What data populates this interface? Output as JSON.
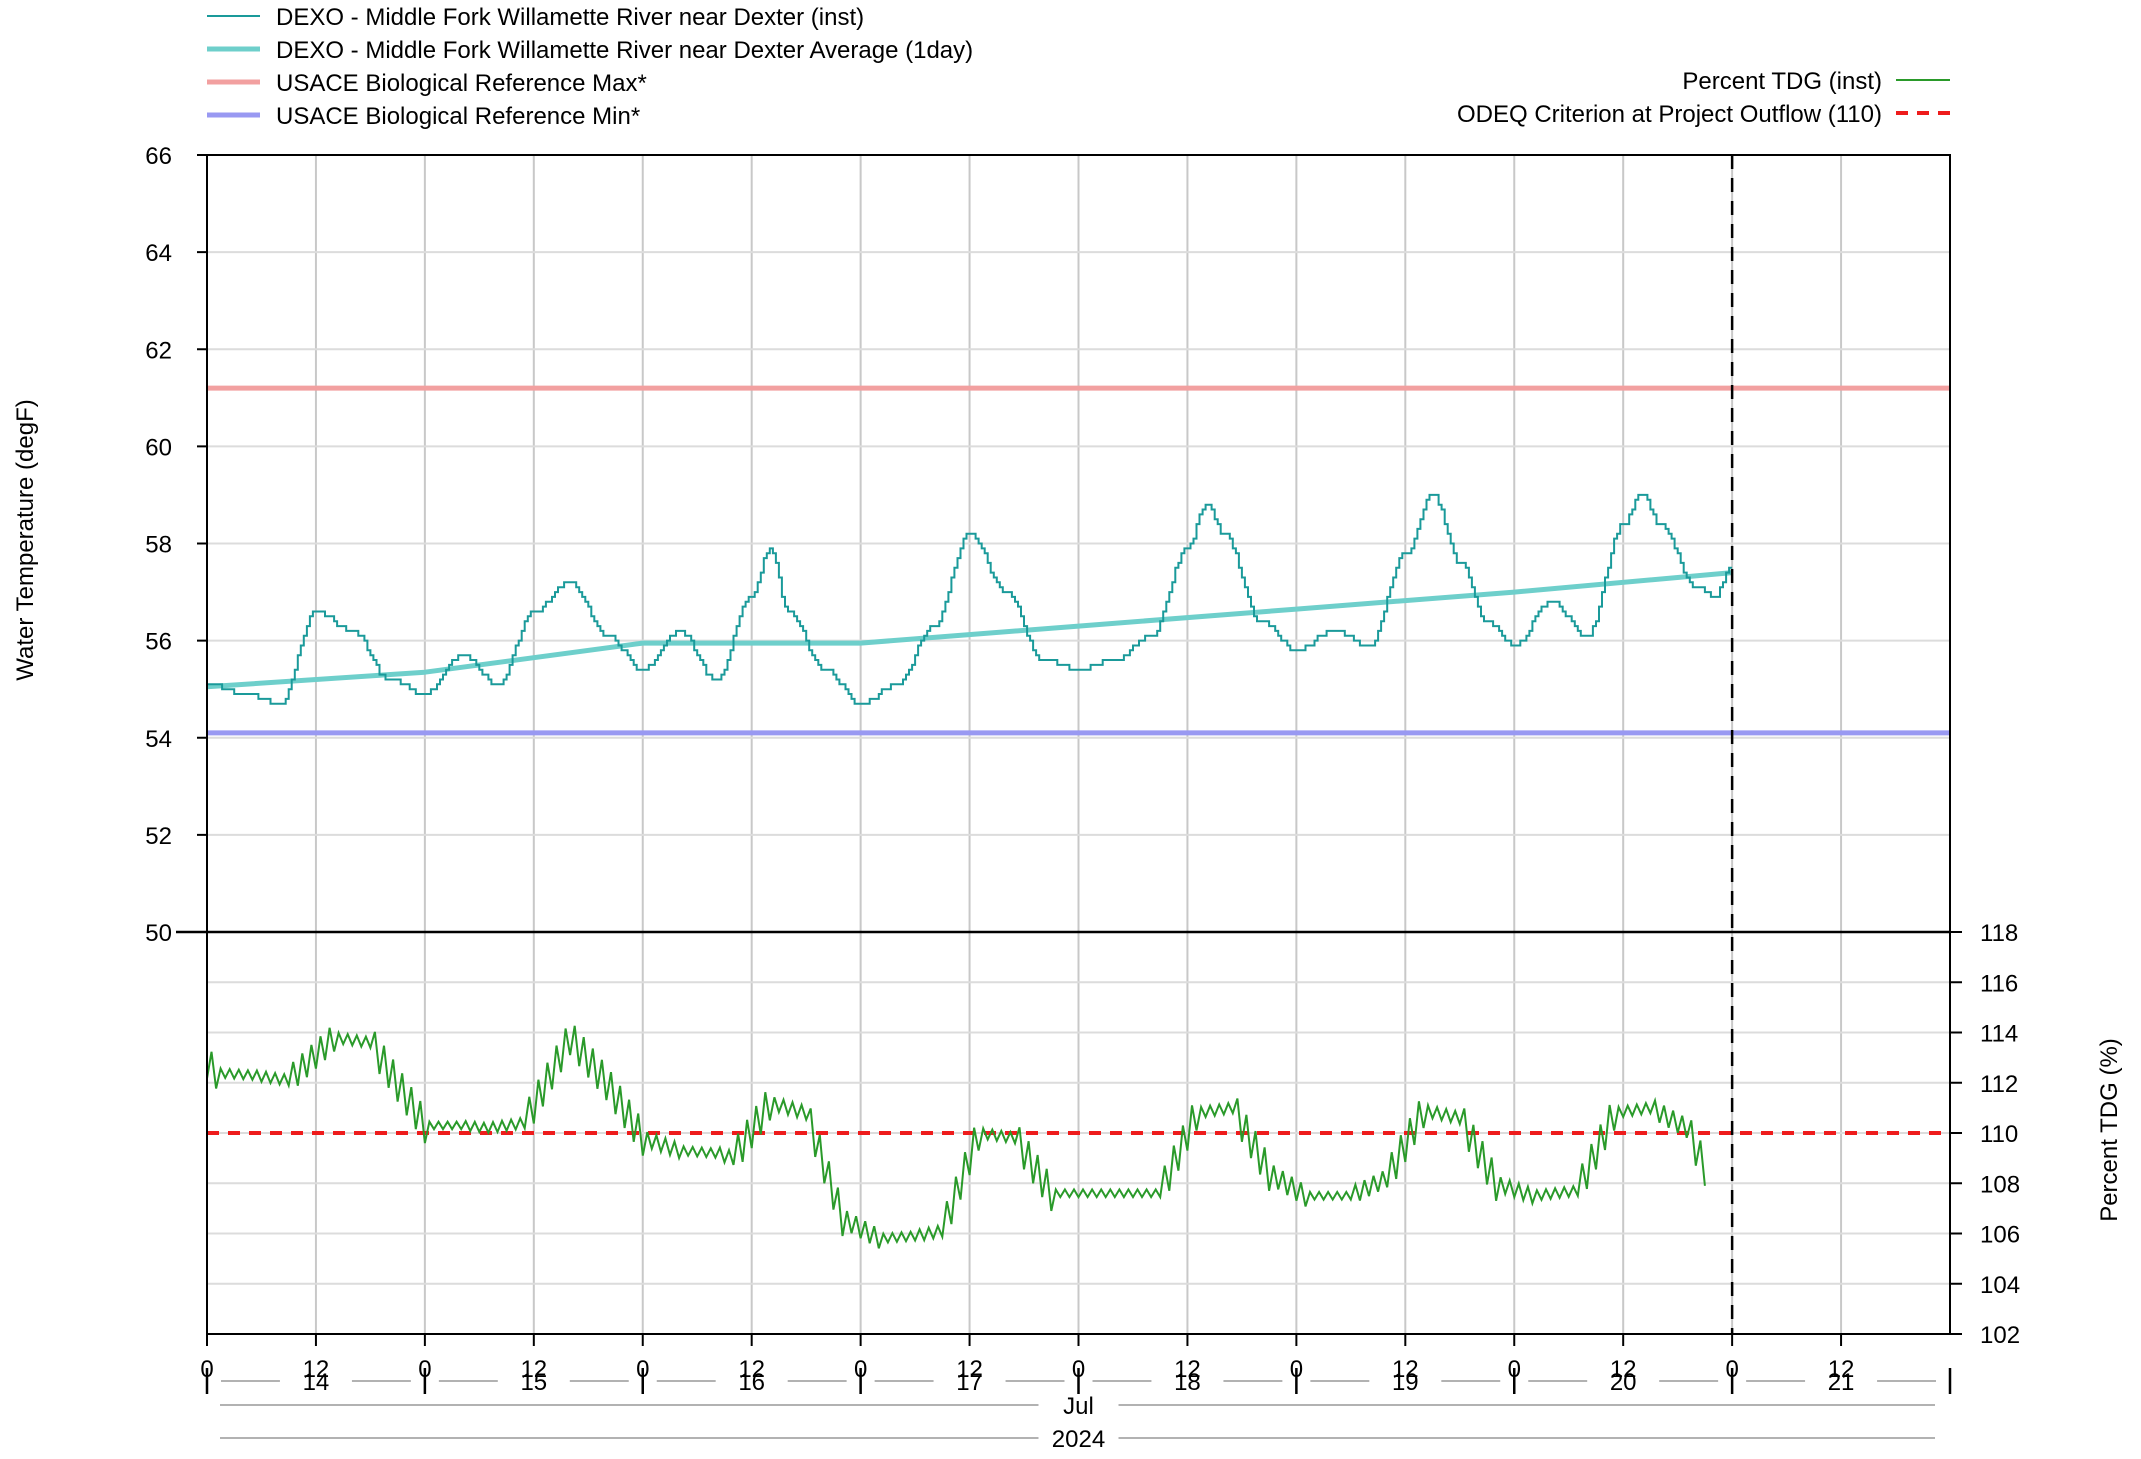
{
  "legend_left": [
    {
      "label": "DEXO - Middle Fork Willamette River near Dexter (inst)",
      "color": "#1a9a9a"
    },
    {
      "label": "DEXO - Middle Fork Willamette River near Dexter Average (1day)",
      "color": "#6ecfcb"
    },
    {
      "label": "USACE Biological Reference Max*",
      "color": "#f2a0a0"
    },
    {
      "label": "USACE Biological Reference Min*",
      "color": "#9999f2"
    }
  ],
  "legend_right": [
    {
      "label": "Percent TDG (inst)",
      "color": "#2a9a2a"
    },
    {
      "label": "ODEQ Criterion at Project Outflow (110)",
      "color": "#ee1c1c"
    }
  ],
  "chart_data": [
    {
      "type": "line",
      "panel": "top",
      "ylabel": "Water Temperature (degF)",
      "ylim": [
        50,
        66
      ],
      "yticks": [
        50,
        52,
        54,
        56,
        58,
        60,
        62,
        64,
        66
      ],
      "xlim": [
        "2024-07-14 00:00",
        "2024-07-22 00:00"
      ],
      "grid": true,
      "series": [
        {
          "name": "DEXO - Middle Fork Willamette River near Dexter (inst)",
          "color": "#1a9a9a",
          "x": [
            "2024-07-14 00:00",
            "2024-07-14 04:00",
            "2024-07-14 08:00",
            "2024-07-14 12:00",
            "2024-07-14 16:00",
            "2024-07-14 20:00",
            "2024-07-15 00:00",
            "2024-07-15 04:00",
            "2024-07-15 08:00",
            "2024-07-15 12:00",
            "2024-07-15 16:00",
            "2024-07-15 20:00",
            "2024-07-16 00:00",
            "2024-07-16 04:00",
            "2024-07-16 08:00",
            "2024-07-16 12:00",
            "2024-07-16 14:00",
            "2024-07-16 16:00",
            "2024-07-16 20:00",
            "2024-07-17 00:00",
            "2024-07-17 04:00",
            "2024-07-17 08:00",
            "2024-07-17 12:00",
            "2024-07-17 16:00",
            "2024-07-17 20:00",
            "2024-07-18 00:00",
            "2024-07-18 04:00",
            "2024-07-18 08:00",
            "2024-07-18 12:00",
            "2024-07-18 14:00",
            "2024-07-18 16:00",
            "2024-07-18 20:00",
            "2024-07-19 00:00",
            "2024-07-19 04:00",
            "2024-07-19 08:00",
            "2024-07-19 12:00",
            "2024-07-19 15:00",
            "2024-07-19 18:00",
            "2024-07-19 21:00",
            "2024-07-20 00:00",
            "2024-07-20 04:00",
            "2024-07-20 08:00",
            "2024-07-20 12:00",
            "2024-07-20 14:00",
            "2024-07-20 16:00",
            "2024-07-20 20:00",
            "2024-07-20 22:00",
            "2024-07-21 00:00"
          ],
          "y": [
            55.1,
            54.9,
            54.7,
            56.6,
            56.2,
            55.2,
            54.9,
            55.7,
            55.1,
            56.6,
            57.2,
            56.1,
            55.4,
            56.2,
            55.2,
            56.9,
            57.9,
            56.6,
            55.4,
            54.7,
            55.1,
            56.3,
            58.2,
            57.0,
            55.6,
            55.4,
            55.6,
            56.1,
            57.9,
            58.8,
            58.2,
            56.4,
            55.8,
            56.2,
            55.9,
            57.8,
            59.0,
            57.6,
            56.4,
            55.9,
            56.8,
            56.1,
            58.4,
            59.0,
            58.4,
            57.1,
            56.9,
            57.5
          ]
        },
        {
          "name": "DEXO - Middle Fork Willamette River near Dexter Average (1day)",
          "color": "#6ecfcb",
          "x": [
            "2024-07-14 00:00",
            "2024-07-15 00:00",
            "2024-07-16 00:00",
            "2024-07-17 00:00",
            "2024-07-18 00:00",
            "2024-07-19 00:00",
            "2024-07-20 00:00",
            "2024-07-21 00:00"
          ],
          "y": [
            55.05,
            55.35,
            55.95,
            55.95,
            56.3,
            56.65,
            57.0,
            57.4
          ]
        },
        {
          "name": "USACE Biological Reference Max*",
          "color": "#f2a0a0",
          "x": [
            "2024-07-14 00:00",
            "2024-07-22 00:00"
          ],
          "y": [
            61.2,
            61.2
          ]
        },
        {
          "name": "USACE Biological Reference Min*",
          "color": "#9999f2",
          "x": [
            "2024-07-14 00:00",
            "2024-07-22 00:00"
          ],
          "y": [
            54.1,
            54.1
          ]
        }
      ]
    },
    {
      "type": "line",
      "panel": "bottom",
      "ylabel": "Percent TDG (%)",
      "ylim": [
        102,
        118
      ],
      "yticks": [
        102,
        104,
        106,
        108,
        110,
        112,
        114,
        116,
        118
      ],
      "xlim": [
        "2024-07-14 00:00",
        "2024-07-22 00:00"
      ],
      "grid": true,
      "series": [
        {
          "name": "Percent TDG (inst)",
          "color": "#2a9a2a",
          "x": [
            "2024-07-14 00:00",
            "2024-07-14 01:00",
            "2024-07-14 05:00",
            "2024-07-14 09:00",
            "2024-07-14 14:00",
            "2024-07-14 18:00",
            "2024-07-15 00:00",
            "2024-07-15 04:00",
            "2024-07-15 07:00",
            "2024-07-15 11:00",
            "2024-07-15 16:00",
            "2024-07-15 20:00",
            "2024-07-16 00:00",
            "2024-07-16 04:00",
            "2024-07-16 08:00",
            "2024-07-16 10:00",
            "2024-07-16 14:00",
            "2024-07-16 18:00",
            "2024-07-16 22:00",
            "2024-07-17 02:00",
            "2024-07-17 06:00",
            "2024-07-17 09:00",
            "2024-07-17 13:00",
            "2024-07-17 17:00",
            "2024-07-17 21:00",
            "2024-07-18 02:00",
            "2024-07-18 09:00",
            "2024-07-18 13:00",
            "2024-07-18 17:00",
            "2024-07-18 21:00",
            "2024-07-19 01:00",
            "2024-07-19 06:00",
            "2024-07-19 10:00",
            "2024-07-19 14:00",
            "2024-07-19 18:00",
            "2024-07-19 22:00",
            "2024-07-20 02:00",
            "2024-07-20 07:00",
            "2024-07-20 11:00",
            "2024-07-20 15:00",
            "2024-07-20 19:00",
            "2024-07-20 21:00"
          ],
          "y": [
            112.8,
            112.4,
            112.3,
            112.1,
            113.8,
            113.6,
            110.3,
            110.3,
            110.2,
            110.4,
            113.8,
            112.0,
            109.8,
            109.3,
            109.2,
            109.0,
            111.2,
            110.8,
            106.6,
            105.8,
            105.9,
            106.1,
            110.0,
            109.8,
            107.6,
            107.6,
            107.6,
            110.8,
            111.0,
            108.4,
            107.5,
            107.5,
            108.2,
            110.9,
            110.6,
            108.0,
            107.5,
            107.7,
            110.8,
            111.0,
            110.2,
            108.6
          ],
          "wiggle": 0.7
        },
        {
          "name": "ODEQ Criterion at Project Outflow (110)",
          "color": "#ee1c1c",
          "x": [
            "2024-07-14 00:00",
            "2024-07-22 00:00"
          ],
          "y": [
            110,
            110
          ]
        }
      ]
    }
  ],
  "x_axis": {
    "hour_ticks": [
      "0",
      "12",
      "0",
      "12",
      "0",
      "12",
      "0",
      "12",
      "0",
      "12",
      "0",
      "12",
      "0",
      "12",
      "0",
      "12"
    ],
    "day_labels": [
      "14",
      "15",
      "16",
      "17",
      "18",
      "19",
      "20",
      "21"
    ],
    "month_label": "Jul",
    "year_label": "2024"
  },
  "now_marker": "2024-07-21 00:00"
}
